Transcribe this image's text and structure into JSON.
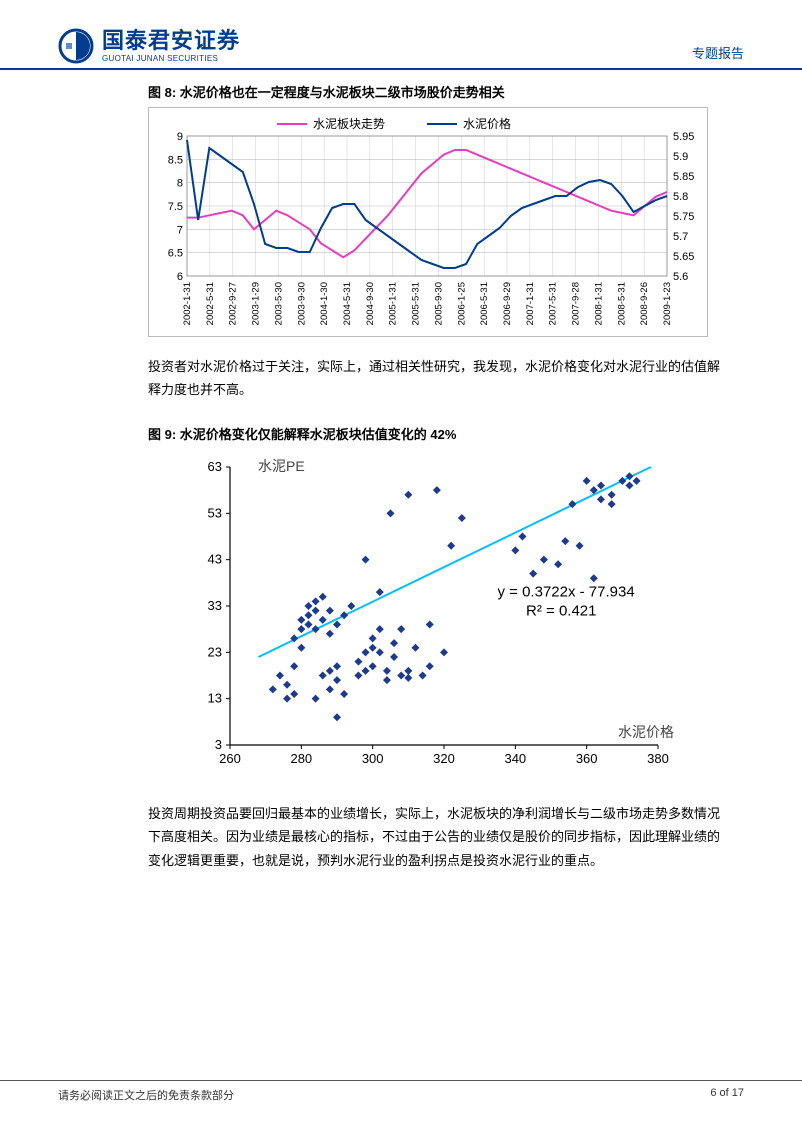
{
  "header": {
    "logo_cn": "国泰君安证券",
    "logo_en": "GUOTAI JUNAN SECURITIES",
    "right_label": "专题报告"
  },
  "fig8": {
    "title": "图 8:  水泥价格也在一定程度与水泥板块二级市场股价走势相关",
    "legend1": "水泥板块走势",
    "legend2": "水泥价格",
    "y1_ticks": [
      "6",
      "6.5",
      "7",
      "7.5",
      "8",
      "8.5",
      "9"
    ],
    "y1_lim": [
      6,
      9
    ],
    "y2_ticks": [
      "5.6",
      "5.65",
      "5.7",
      "5.75",
      "5.8",
      "5.85",
      "5.9",
      "5.95"
    ],
    "y2_lim": [
      5.6,
      5.95
    ],
    "x_labels": [
      "2002-1-31",
      "2002-5-31",
      "2002-9-27",
      "2003-1-29",
      "2003-5-30",
      "2003-9-30",
      "2004-1-30",
      "2004-5-31",
      "2004-9-30",
      "2005-1-31",
      "2005-5-31",
      "2005-9-30",
      "2006-1-25",
      "2006-5-31",
      "2006-9-29",
      "2007-1-31",
      "2007-5-31",
      "2007-9-28",
      "2008-1-31",
      "2008-5-31",
      "2008-9-26",
      "2009-1-23"
    ],
    "series1_color": "#e83cbf",
    "series2_color": "#003d8f",
    "series1_width": 2,
    "series2_width": 2,
    "grid_color": "#c0c0c0",
    "series1": [
      7.25,
      7.25,
      7.3,
      7.35,
      7.4,
      7.3,
      7.0,
      7.2,
      7.4,
      7.3,
      7.15,
      7.0,
      6.7,
      6.55,
      6.4,
      6.55,
      6.8,
      7.05,
      7.3,
      7.6,
      7.9,
      8.2,
      8.4,
      8.6,
      8.7,
      8.7,
      8.6,
      8.5,
      8.4,
      8.3,
      8.2,
      8.1,
      8.0,
      7.9,
      7.8,
      7.7,
      7.6,
      7.5,
      7.4,
      7.35,
      7.3,
      7.5,
      7.7,
      7.8
    ],
    "series2": [
      5.94,
      5.74,
      5.92,
      5.9,
      5.88,
      5.86,
      5.78,
      5.68,
      5.67,
      5.67,
      5.66,
      5.66,
      5.72,
      5.77,
      5.78,
      5.78,
      5.74,
      5.72,
      5.7,
      5.68,
      5.66,
      5.64,
      5.63,
      5.62,
      5.62,
      5.63,
      5.68,
      5.7,
      5.72,
      5.75,
      5.77,
      5.78,
      5.79,
      5.8,
      5.8,
      5.822,
      5.835,
      5.84,
      5.83,
      5.8,
      5.76,
      5.775,
      5.79,
      5.8
    ]
  },
  "para1": "投资者对水泥价格过于关注，实际上，通过相关性研究，我发现，水泥价格变化对水泥行业的估值解释力度也并不高。",
  "fig9": {
    "title": "图 9:  水泥价格变化仅能解释水泥板块估值变化的 42%",
    "y_label": "水泥PE",
    "x_label": "水泥价格",
    "eq_line1": "y = 0.3722x - 77.934",
    "eq_line2": "R² = 0.421",
    "y_ticks": [
      "3",
      "13",
      "23",
      "33",
      "43",
      "53",
      "63"
    ],
    "y_lim": [
      3,
      63
    ],
    "x_ticks": [
      "260",
      "280",
      "300",
      "320",
      "340",
      "360",
      "380"
    ],
    "x_lim": [
      260,
      380
    ],
    "point_color": "#1e3a8f",
    "trend_color": "#00bfff",
    "axis_color": "#000000",
    "points": [
      [
        272,
        15
      ],
      [
        274,
        18
      ],
      [
        276,
        13
      ],
      [
        276,
        16
      ],
      [
        278,
        20
      ],
      [
        278,
        14
      ],
      [
        290,
        9
      ],
      [
        278,
        26
      ],
      [
        280,
        28
      ],
      [
        280,
        30
      ],
      [
        280,
        24
      ],
      [
        282,
        29
      ],
      [
        282,
        31
      ],
      [
        282,
        33
      ],
      [
        284,
        13
      ],
      [
        284,
        28
      ],
      [
        284,
        32
      ],
      [
        284,
        34
      ],
      [
        286,
        18
      ],
      [
        286,
        30
      ],
      [
        286,
        35
      ],
      [
        288,
        15
      ],
      [
        288,
        19
      ],
      [
        288,
        27
      ],
      [
        288,
        32
      ],
      [
        290,
        17
      ],
      [
        290,
        29
      ],
      [
        290,
        20
      ],
      [
        292,
        14
      ],
      [
        292,
        31
      ],
      [
        294,
        33
      ],
      [
        296,
        18
      ],
      [
        296,
        21
      ],
      [
        298,
        23
      ],
      [
        298,
        19
      ],
      [
        298,
        43
      ],
      [
        300,
        20
      ],
      [
        300,
        26
      ],
      [
        300,
        24
      ],
      [
        302,
        23
      ],
      [
        302,
        28
      ],
      [
        302,
        36
      ],
      [
        304,
        17
      ],
      [
        304,
        19
      ],
      [
        305,
        53
      ],
      [
        306,
        22
      ],
      [
        306,
        25
      ],
      [
        308,
        18
      ],
      [
        308,
        28
      ],
      [
        310,
        19
      ],
      [
        310,
        17.5
      ],
      [
        310,
        57
      ],
      [
        312,
        24
      ],
      [
        314,
        18
      ],
      [
        316,
        20
      ],
      [
        316,
        29
      ],
      [
        318,
        58
      ],
      [
        320,
        23
      ],
      [
        322,
        46
      ],
      [
        325,
        52
      ],
      [
        340,
        45
      ],
      [
        342,
        48
      ],
      [
        345,
        40
      ],
      [
        348,
        43
      ],
      [
        352,
        42
      ],
      [
        354,
        47
      ],
      [
        356,
        55
      ],
      [
        358,
        46
      ],
      [
        360,
        60
      ],
      [
        362,
        39
      ],
      [
        362,
        58
      ],
      [
        364,
        59
      ],
      [
        364,
        56
      ],
      [
        367,
        55
      ],
      [
        367,
        57
      ],
      [
        370,
        60
      ],
      [
        372,
        61
      ],
      [
        372,
        59
      ],
      [
        374,
        60
      ]
    ],
    "trend": [
      [
        268,
        22
      ],
      [
        378,
        63
      ]
    ]
  },
  "para2": "投资周期投资品要回归最基本的业绩增长，实际上，水泥板块的净利润增长与二级市场走势多数情况下高度相关。因为业绩是最核心的指标，不过由于公告的业绩仅是股价的同步指标，因此理解业绩的变化逻辑更重要，也就是说，预判水泥行业的盈利拐点是投资水泥行业的重点。",
  "footer": {
    "left": "请务必阅读正文之后的免责条款部分",
    "right": "6 of 17"
  }
}
